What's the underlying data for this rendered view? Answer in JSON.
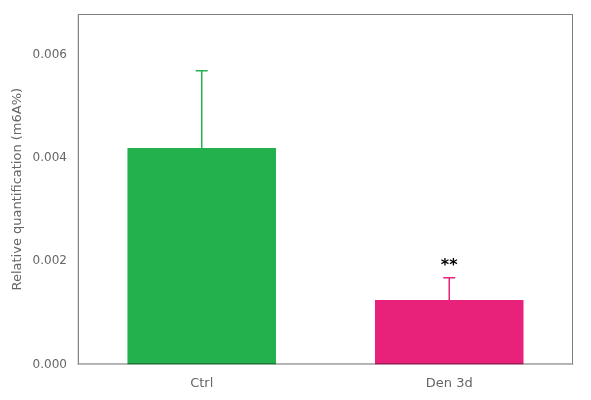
{
  "chart_data": {
    "type": "bar",
    "categories": [
      "Ctrl",
      "Den 3d"
    ],
    "values": [
      0.0042,
      0.00125
    ],
    "colors": [
      "#22B14C",
      "#E8217A"
    ],
    "errors_up": [
      0.0015,
      0.00043
    ],
    "errors_down": [
      0.0,
      0.0
    ],
    "ylabel": "Relative quantification (m6A%)",
    "ylim": [
      0,
      0.0068
    ],
    "yticks": [
      {
        "value": 0.0,
        "label": "0.000"
      },
      {
        "value": 0.002,
        "label": "0.002"
      },
      {
        "value": 0.004,
        "label": "0.004"
      },
      {
        "value": 0.006,
        "label": "0.006"
      }
    ],
    "annotations": [
      {
        "text": "**",
        "category": "Den 3d"
      }
    ],
    "grid": false
  }
}
